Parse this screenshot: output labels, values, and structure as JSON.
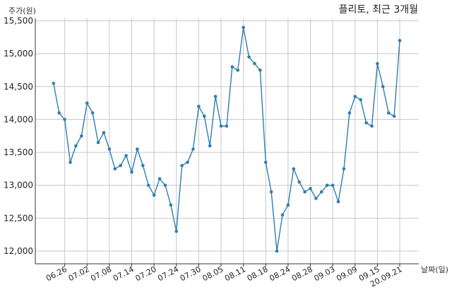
{
  "chart_data": {
    "type": "line",
    "title": "플리토, 최근 3개월",
    "ylabel": "주가(원)",
    "xlabel": "날짜(일)",
    "ylim": [
      11800,
      15600
    ],
    "yticks": [
      12000,
      12500,
      13000,
      13500,
      14000,
      14500,
      15000,
      15500
    ],
    "ytick_labels": [
      "12,000",
      "12,500",
      "13,000",
      "13,500",
      "14,000",
      "14,500",
      "15,000",
      "15,500"
    ],
    "xtick_labels": [
      "06.26",
      "07.02",
      "07.08",
      "07.14",
      "07.20",
      "07.24",
      "07.30",
      "08.05",
      "08.11",
      "08.18",
      "08.24",
      "08.28",
      "09.03",
      "09.09",
      "09.15",
      "20.09.21"
    ],
    "xtick_index": [
      2,
      6,
      10,
      14,
      18,
      22,
      26,
      30,
      34,
      38,
      42,
      46,
      50,
      54,
      58,
      62
    ],
    "grid": true,
    "color": "#2f7eb0",
    "series": [
      {
        "values": [
          14550,
          14100,
          14000,
          13350,
          13600,
          13750,
          14250,
          14100,
          13650,
          13800,
          13550,
          13250,
          13300,
          13450,
          13200,
          13550,
          13300,
          13000,
          12850,
          13100,
          13000,
          12700,
          12300,
          13300,
          13350,
          13550,
          14200,
          14050,
          13600,
          14350,
          13900,
          13900,
          14800,
          14750,
          15400,
          14950,
          14850,
          14750,
          13350,
          12900,
          12000,
          12550,
          12700,
          13250,
          13050,
          12900,
          12950,
          12800,
          12900,
          13000,
          13000,
          12750,
          13250,
          14100,
          14350,
          14300,
          13950,
          13900,
          14850,
          14500,
          14100,
          14050,
          15200
        ]
      }
    ]
  }
}
